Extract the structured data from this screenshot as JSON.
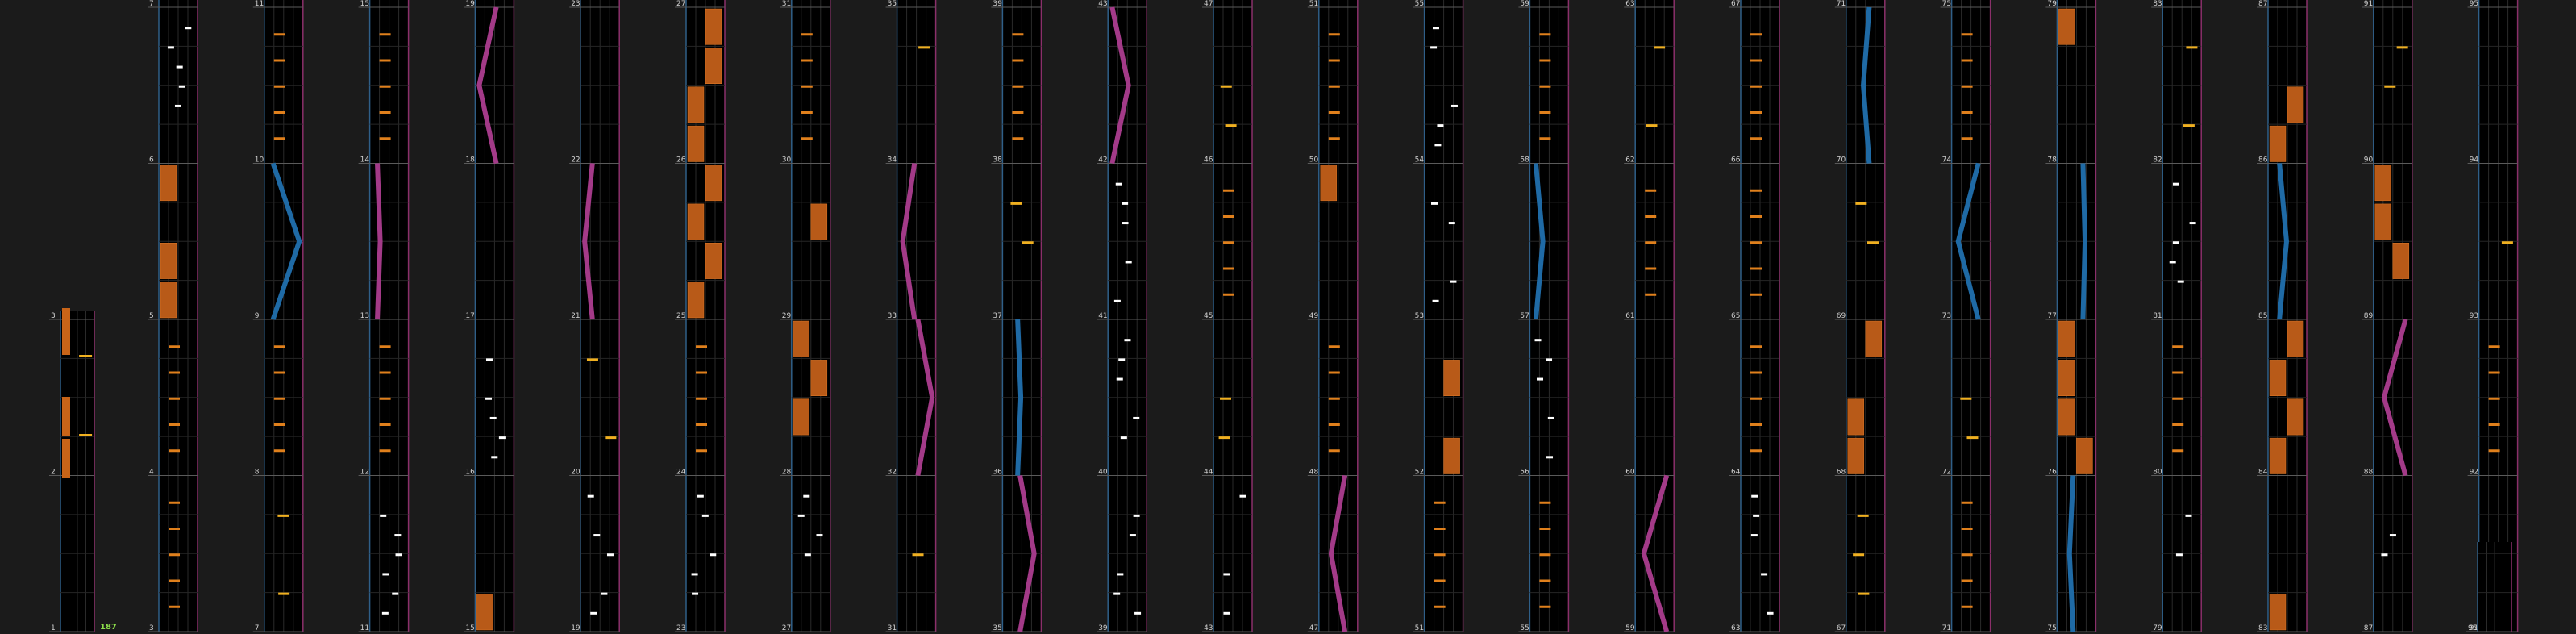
{
  "chart_view": {
    "combo_label": "187",
    "columns": [
      {
        "measures": [
          1,
          2,
          3
        ]
      },
      {
        "measures": [
          3,
          4,
          5,
          6,
          7
        ]
      },
      {
        "measures": [
          7,
          8,
          9,
          10,
          11
        ]
      },
      {
        "measures": [
          11,
          12,
          13,
          14,
          15
        ]
      },
      {
        "measures": [
          15,
          16,
          17,
          18,
          19
        ]
      },
      {
        "measures": [
          19,
          20,
          21,
          22,
          23
        ]
      },
      {
        "measures": [
          23,
          24,
          25,
          26,
          27
        ]
      },
      {
        "measures": [
          27,
          28,
          29,
          30,
          31
        ]
      },
      {
        "measures": [
          31,
          32,
          33,
          34,
          35
        ]
      },
      {
        "measures": [
          35,
          36,
          37,
          38,
          39
        ]
      },
      {
        "measures": [
          39,
          40,
          41,
          42,
          43
        ]
      },
      {
        "measures": [
          43,
          44,
          45,
          46,
          47
        ]
      },
      {
        "measures": [
          47,
          48,
          49,
          50,
          51
        ]
      },
      {
        "measures": [
          51,
          52,
          53,
          54,
          55
        ]
      },
      {
        "measures": [
          55,
          56,
          57,
          58,
          59
        ]
      },
      {
        "measures": [
          59,
          60,
          61,
          62,
          63
        ]
      },
      {
        "measures": [
          63,
          64,
          65,
          66,
          67
        ]
      },
      {
        "measures": [
          67,
          68,
          69,
          70,
          71
        ]
      },
      {
        "measures": [
          71,
          72,
          73,
          74,
          75
        ]
      },
      {
        "measures": [
          75,
          76,
          77,
          78,
          79
        ]
      },
      {
        "measures": [
          79,
          80,
          81,
          82,
          83
        ]
      },
      {
        "measures": [
          83,
          84,
          85,
          86,
          87
        ]
      },
      {
        "measures": [
          87,
          88,
          89,
          90,
          91
        ]
      },
      {
        "measures": [
          91,
          92,
          93,
          94,
          95
        ]
      },
      {
        "measures": [
          95
        ]
      }
    ]
  }
}
